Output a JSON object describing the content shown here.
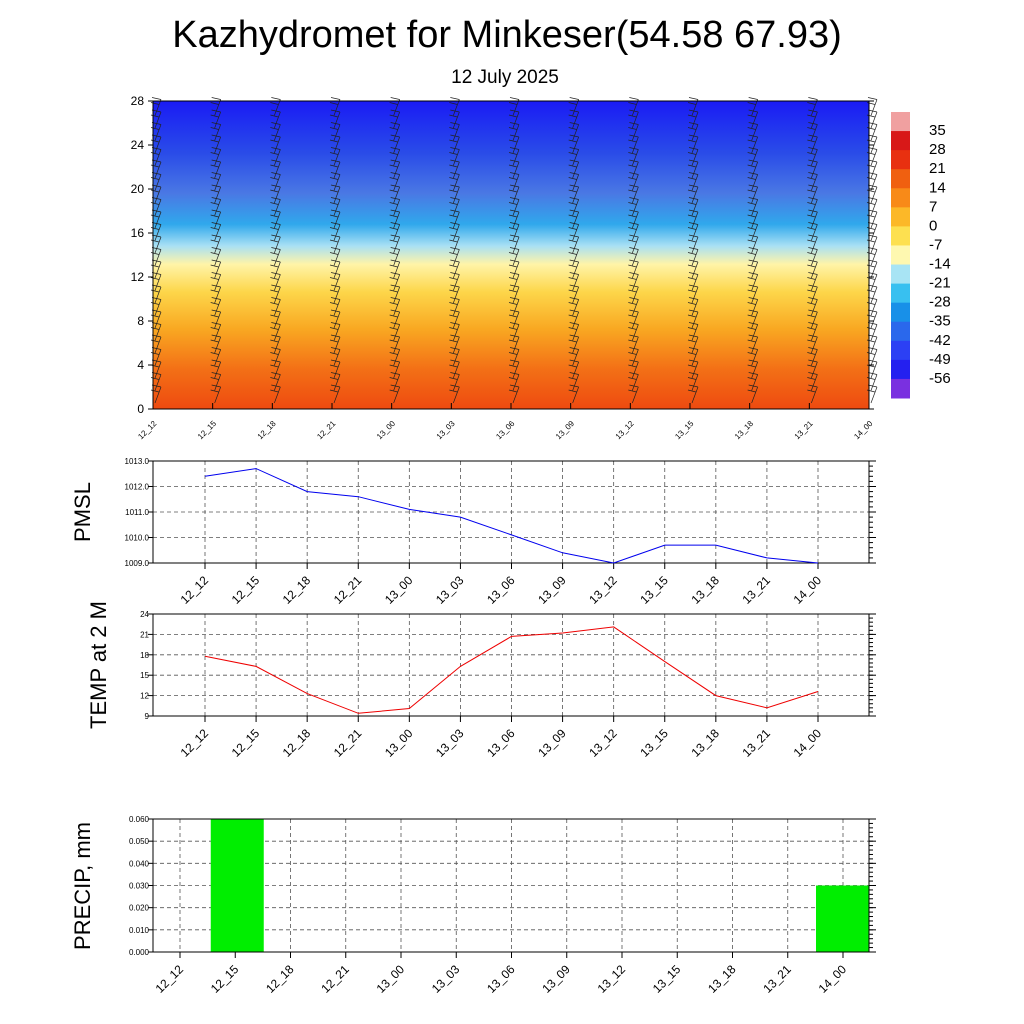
{
  "title": "Kazhydromet for Minkeser(54.58 67.93)",
  "subtitle": "12 July 2025",
  "chart_data": [
    {
      "type": "heatmap",
      "name": "temperature-cross-section",
      "x_categories": [
        "12_12",
        "12_15",
        "12_18",
        "12_21",
        "13_00",
        "13_03",
        "13_06",
        "13_09",
        "13_12",
        "13_15",
        "13_18",
        "13_21",
        "14_00"
      ],
      "y_ticks": [
        "0",
        "4",
        "8",
        "12",
        "16",
        "20",
        "24",
        "28"
      ],
      "ylim": [
        0,
        28
      ],
      "colorbar_labels": [
        "35",
        "28",
        "21",
        "14",
        "7",
        "0",
        "-7",
        "-14",
        "-21",
        "-28",
        "-35",
        "-42",
        "-49",
        "-56"
      ],
      "colorbar_colors": [
        "#f0a0a0",
        "#d81818",
        "#e83010",
        "#f06010",
        "#f88a18",
        "#fcb828",
        "#fde050",
        "#fef8b0",
        "#a8e4f4",
        "#38c0f0",
        "#1890e8",
        "#2a68ec",
        "#2c40f4",
        "#2420f0",
        "#7a30e0"
      ]
    },
    {
      "type": "line",
      "name": "PMSL",
      "ylabel": "PMSL",
      "categories": [
        "12_12",
        "12_15",
        "12_18",
        "12_21",
        "13_00",
        "13_03",
        "13_06",
        "13_09",
        "13_12",
        "13_15",
        "13_18",
        "13_21",
        "14_00"
      ],
      "y_ticks": [
        "1009.0",
        "1010.0",
        "1011.0",
        "1012.0",
        "1013.0"
      ],
      "ylim": [
        1009.0,
        1013.0
      ],
      "color": "#0000ee",
      "values": [
        1012.4,
        1012.7,
        1011.8,
        1011.6,
        1011.1,
        1010.8,
        1010.1,
        1009.4,
        1009.0,
        1009.7,
        1009.7,
        1009.2,
        1009.0
      ]
    },
    {
      "type": "line",
      "name": "TEMP at 2 M",
      "ylabel": "TEMP at 2 M",
      "categories": [
        "12_12",
        "12_15",
        "12_18",
        "12_21",
        "13_00",
        "13_03",
        "13_06",
        "13_09",
        "13_12",
        "13_15",
        "13_18",
        "13_21",
        "14_00"
      ],
      "y_ticks": [
        "9",
        "12",
        "15",
        "18",
        "21",
        "24"
      ],
      "ylim": [
        9,
        24
      ],
      "color": "#ee0000",
      "values": [
        17.8,
        16.3,
        12.3,
        9.4,
        10.1,
        16.3,
        20.7,
        21.2,
        22.1,
        17.0,
        12.0,
        10.2,
        12.6
      ]
    },
    {
      "type": "bar",
      "name": "PRECIP, mm",
      "ylabel": "PRECIP, mm",
      "categories": [
        "12_12",
        "12_15",
        "12_18",
        "12_21",
        "13_00",
        "13_03",
        "13_06",
        "13_09",
        "13_12",
        "13_15",
        "13_18",
        "13_21",
        "14_00"
      ],
      "y_ticks": [
        "0.000",
        "0.010",
        "0.020",
        "0.030",
        "0.040",
        "0.050",
        "0.060"
      ],
      "ylim": [
        0,
        0.06
      ],
      "color": "#00ee00",
      "values": [
        0,
        0.06,
        0,
        0,
        0,
        0,
        0,
        0,
        0,
        0,
        0,
        0,
        0.03
      ]
    }
  ]
}
